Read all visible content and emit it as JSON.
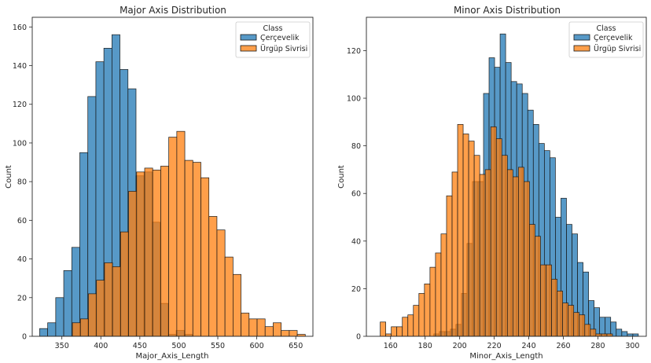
{
  "colors": {
    "cercevelik": "#1f77b4",
    "urgup": "#ff7f0e",
    "edge": "#1a1a1a",
    "axis": "#262626"
  },
  "chart_data": [
    {
      "type": "bar",
      "title": "Major Axis Distribution",
      "xlabel": "Major_Axis_Length",
      "ylabel": "Count",
      "xlim": [
        312,
        672
      ],
      "ylim": [
        0,
        165
      ],
      "xticks": [
        350,
        400,
        450,
        500,
        550,
        600,
        650
      ],
      "yticks": [
        0,
        20,
        40,
        60,
        80,
        100,
        120,
        140,
        160
      ],
      "bin_width": 10.3,
      "legend": {
        "title": "Class",
        "position": "top-right"
      },
      "series": [
        {
          "name": "Çerçevelik",
          "color": "#1f77b4",
          "bins": [
            [
              321.5,
              4
            ],
            [
              331.8,
              7
            ],
            [
              342.1,
              20
            ],
            [
              352.4,
              34
            ],
            [
              362.7,
              46
            ],
            [
              373.0,
              95
            ],
            [
              383.3,
              124
            ],
            [
              393.6,
              142
            ],
            [
              403.9,
              149
            ],
            [
              414.2,
              156
            ],
            [
              424.5,
              138
            ],
            [
              434.8,
              128
            ],
            [
              445.1,
              83
            ],
            [
              455.4,
              85
            ],
            [
              465.7,
              59
            ],
            [
              476.0,
              17
            ],
            [
              486.3,
              1
            ],
            [
              496.6,
              3
            ],
            [
              506.9,
              1
            ]
          ]
        },
        {
          "name": "Ürgüp Sivrisi",
          "color": "#ff7f0e",
          "bins": [
            [
              363.5,
              7
            ],
            [
              373.8,
              9
            ],
            [
              384.1,
              22
            ],
            [
              394.4,
              29
            ],
            [
              404.7,
              38
            ],
            [
              415.0,
              36
            ],
            [
              425.3,
              54
            ],
            [
              435.6,
              75
            ],
            [
              445.9,
              85
            ],
            [
              456.2,
              87
            ],
            [
              466.5,
              86
            ],
            [
              476.8,
              88
            ],
            [
              487.1,
              103
            ],
            [
              497.4,
              106
            ],
            [
              507.7,
              91
            ],
            [
              518.0,
              90
            ],
            [
              528.3,
              82
            ],
            [
              538.6,
              62
            ],
            [
              548.9,
              55
            ],
            [
              559.2,
              41
            ],
            [
              569.5,
              32
            ],
            [
              579.8,
              12
            ],
            [
              590.1,
              9
            ],
            [
              600.4,
              9
            ],
            [
              610.7,
              5
            ],
            [
              621.0,
              7
            ],
            [
              631.3,
              3
            ],
            [
              641.6,
              3
            ],
            [
              651.9,
              1
            ]
          ]
        }
      ]
    },
    {
      "type": "bar",
      "title": "Minor Axis Distribution",
      "xlabel": "Minor_Axis_Length",
      "ylabel": "Count",
      "xlim": [
        146,
        308
      ],
      "ylim": [
        0,
        134
      ],
      "xticks": [
        160,
        180,
        200,
        220,
        240,
        260,
        280,
        300
      ],
      "yticks": [
        0,
        20,
        40,
        60,
        80,
        100,
        120
      ],
      "bin_width": 3.2,
      "legend": {
        "title": "Class",
        "position": "top-right"
      },
      "series": [
        {
          "name": "Çerçevelik",
          "color": "#1f77b4",
          "bins": [
            [
              185.0,
              1
            ],
            [
              188.2,
              2
            ],
            [
              191.4,
              2
            ],
            [
              194.6,
              3
            ],
            [
              197.8,
              5
            ],
            [
              201.0,
              18
            ],
            [
              204.2,
              39
            ],
            [
              207.4,
              65
            ],
            [
              210.6,
              65
            ],
            [
              213.8,
              102
            ],
            [
              217.0,
              117
            ],
            [
              220.2,
              113
            ],
            [
              223.4,
              127
            ],
            [
              226.6,
              115
            ],
            [
              229.8,
              107
            ],
            [
              233.0,
              106
            ],
            [
              236.2,
              102
            ],
            [
              239.4,
              95
            ],
            [
              242.6,
              89
            ],
            [
              245.8,
              81
            ],
            [
              249.0,
              78
            ],
            [
              252.2,
              75
            ],
            [
              255.4,
              50
            ],
            [
              258.6,
              58
            ],
            [
              261.8,
              47
            ],
            [
              265.0,
              43
            ],
            [
              268.2,
              31
            ],
            [
              271.4,
              27
            ],
            [
              274.6,
              15
            ],
            [
              277.8,
              12
            ],
            [
              281.0,
              8
            ],
            [
              284.2,
              8
            ],
            [
              287.4,
              6
            ],
            [
              290.6,
              3
            ],
            [
              293.8,
              2
            ],
            [
              297.0,
              1
            ],
            [
              300.2,
              1
            ]
          ]
        },
        {
          "name": "Ürgüp Sivrisi",
          "color": "#ff7f0e",
          "bins": [
            [
              154.0,
              6
            ],
            [
              157.2,
              1
            ],
            [
              160.4,
              4
            ],
            [
              163.6,
              4
            ],
            [
              166.8,
              8
            ],
            [
              170.0,
              9
            ],
            [
              173.2,
              13
            ],
            [
              176.4,
              18
            ],
            [
              179.6,
              22
            ],
            [
              182.8,
              29
            ],
            [
              186.0,
              35
            ],
            [
              189.2,
              43
            ],
            [
              192.4,
              59
            ],
            [
              195.6,
              69
            ],
            [
              198.8,
              89
            ],
            [
              202.0,
              85
            ],
            [
              205.2,
              82
            ],
            [
              208.4,
              76
            ],
            [
              211.6,
              68
            ],
            [
              214.8,
              70
            ],
            [
              218.0,
              88
            ],
            [
              221.2,
              83
            ],
            [
              224.4,
              76
            ],
            [
              227.6,
              70
            ],
            [
              230.8,
              67
            ],
            [
              234.0,
              71
            ],
            [
              237.2,
              65
            ],
            [
              240.4,
              47
            ],
            [
              243.6,
              42
            ],
            [
              246.8,
              30
            ],
            [
              250.0,
              30
            ],
            [
              253.2,
              24
            ],
            [
              256.4,
              19
            ],
            [
              259.6,
              14
            ],
            [
              262.8,
              13
            ],
            [
              266.0,
              10
            ],
            [
              269.2,
              9
            ],
            [
              272.4,
              5
            ],
            [
              275.6,
              3
            ],
            [
              278.8,
              1
            ],
            [
              282.0,
              1
            ],
            [
              285.2,
              1
            ]
          ]
        }
      ]
    }
  ]
}
